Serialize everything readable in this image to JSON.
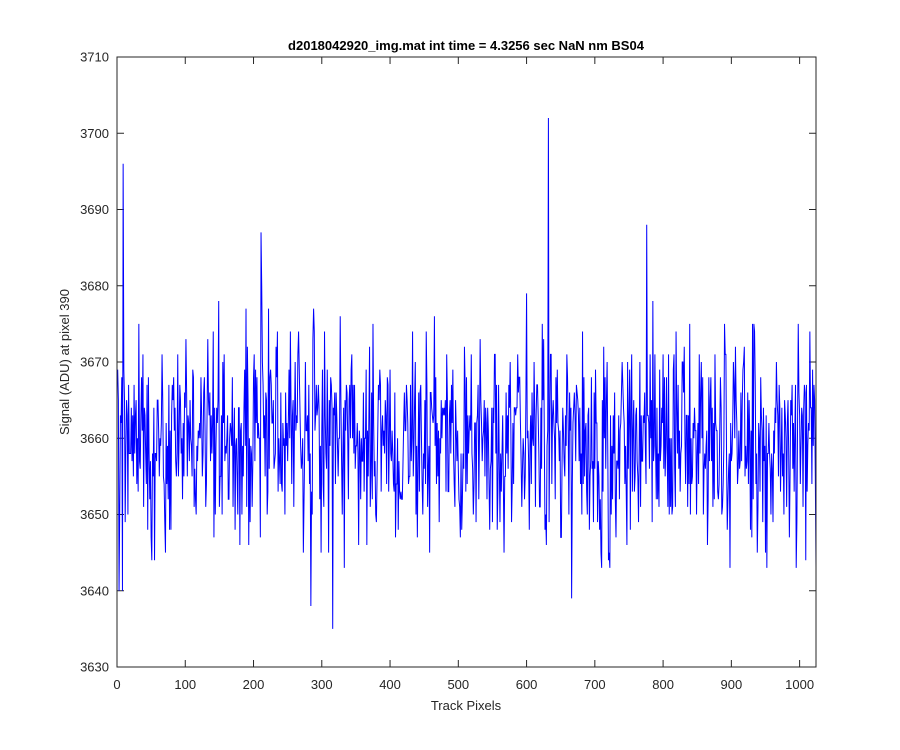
{
  "chart_data": {
    "type": "line",
    "title": "d2018042920_img.mat int time = 4.3256 sec  NaN nm BS04",
    "xlabel": "Track Pixels",
    "ylabel": "Signal (ADU) at pixel 390",
    "xlim": [
      0,
      1024
    ],
    "ylim": [
      3630,
      3710
    ],
    "xticks": [
      0,
      100,
      200,
      300,
      400,
      500,
      600,
      700,
      800,
      900,
      1000
    ],
    "yticks": [
      3630,
      3640,
      3650,
      3660,
      3670,
      3680,
      3690,
      3700,
      3710
    ],
    "grid": false,
    "series": [
      {
        "color": "#0000ff",
        "n_points": 1024,
        "x_start": 1,
        "x_end": 1024,
        "baseline": 3660,
        "noise_range": [
          3643,
          3687
        ],
        "notable_points": [
          {
            "x": 1,
            "y": 3669
          },
          {
            "x": 3,
            "y": 3640
          },
          {
            "x": 8,
            "y": 3640
          },
          {
            "x": 9,
            "y": 3696
          },
          {
            "x": 55,
            "y": 3644
          },
          {
            "x": 211,
            "y": 3687
          },
          {
            "x": 284,
            "y": 3638
          },
          {
            "x": 316,
            "y": 3635
          },
          {
            "x": 632,
            "y": 3702
          },
          {
            "x": 666,
            "y": 3639
          },
          {
            "x": 776,
            "y": 3688
          },
          {
            "x": 952,
            "y": 3643
          }
        ]
      }
    ]
  }
}
